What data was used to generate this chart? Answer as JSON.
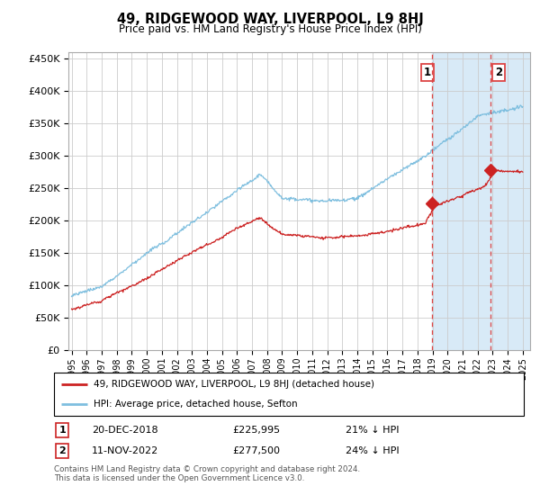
{
  "title": "49, RIDGEWOOD WAY, LIVERPOOL, L9 8HJ",
  "subtitle": "Price paid vs. HM Land Registry's House Price Index (HPI)",
  "ylabel_ticks": [
    "£0",
    "£50K",
    "£100K",
    "£150K",
    "£200K",
    "£250K",
    "£300K",
    "£350K",
    "£400K",
    "£450K"
  ],
  "ytick_values": [
    0,
    50000,
    100000,
    150000,
    200000,
    250000,
    300000,
    350000,
    400000,
    450000
  ],
  "ylim": [
    0,
    460000
  ],
  "xlim_start": 1994.8,
  "xlim_end": 2025.5,
  "hpi_color": "#7fbfdf",
  "property_color": "#cc2222",
  "marker_color": "#cc2222",
  "vline_color": "#dd4444",
  "sale1_year": 2018.97,
  "sale1_price": 225995,
  "sale2_year": 2022.87,
  "sale2_price": 277500,
  "shade_color": "#d8eaf7",
  "legend_property": "49, RIDGEWOOD WAY, LIVERPOOL, L9 8HJ (detached house)",
  "legend_hpi": "HPI: Average price, detached house, Sefton",
  "table_row1": [
    "1",
    "20-DEC-2018",
    "£225,995",
    "21% ↓ HPI"
  ],
  "table_row2": [
    "2",
    "11-NOV-2022",
    "£277,500",
    "24% ↓ HPI"
  ],
  "footnote": "Contains HM Land Registry data © Crown copyright and database right 2024.\nThis data is licensed under the Open Government Licence v3.0.",
  "grid_color": "#cccccc",
  "bg_color": "#ffffff"
}
